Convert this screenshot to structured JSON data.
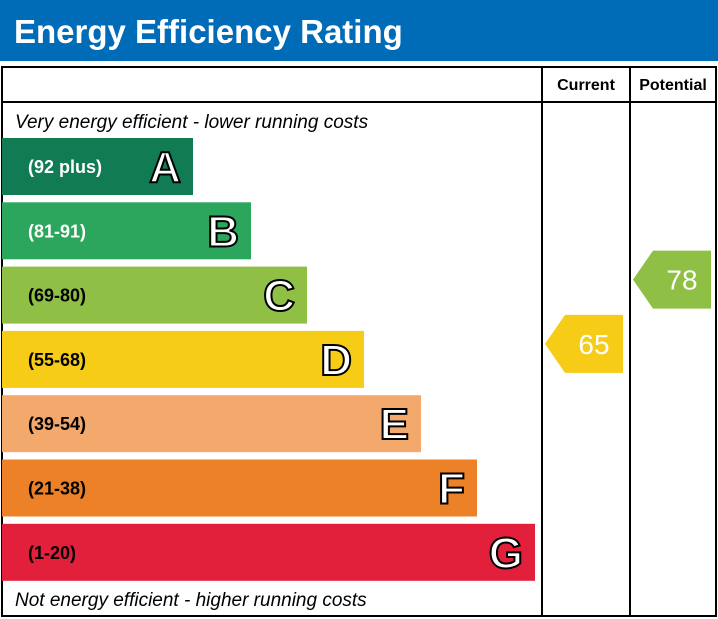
{
  "chart_data": {
    "type": "bar",
    "title": "Energy Efficiency Rating",
    "column_headers": [
      "Current",
      "Potential"
    ],
    "top_note": "Very energy efficient - lower running costs",
    "bottom_note": "Not energy efficient - higher running costs",
    "bands": [
      {
        "letter": "A",
        "range": "(92 plus)",
        "color": "#117b54",
        "range_text_color": "#ffffff"
      },
      {
        "letter": "B",
        "range": "(81-91)",
        "color": "#2ca65c",
        "range_text_color": "#ffffff"
      },
      {
        "letter": "C",
        "range": "(69-80)",
        "color": "#8fbf44",
        "range_text_color": "#000000"
      },
      {
        "letter": "D",
        "range": "(55-68)",
        "color": "#f6cc17",
        "range_text_color": "#000000"
      },
      {
        "letter": "E",
        "range": "(39-54)",
        "color": "#f2a96b",
        "range_text_color": "#000000"
      },
      {
        "letter": "F",
        "range": "(21-38)",
        "color": "#ed8128",
        "range_text_color": "#000000"
      },
      {
        "letter": "G",
        "range": "(1-20)",
        "color": "#e2203c",
        "range_text_color": "#000000"
      }
    ],
    "current": {
      "value": "65",
      "band": "D",
      "color": "#f6cc17"
    },
    "potential": {
      "value": "78",
      "band": "C",
      "color": "#8fbf44"
    }
  },
  "colors": {
    "header": "#006bb6"
  }
}
